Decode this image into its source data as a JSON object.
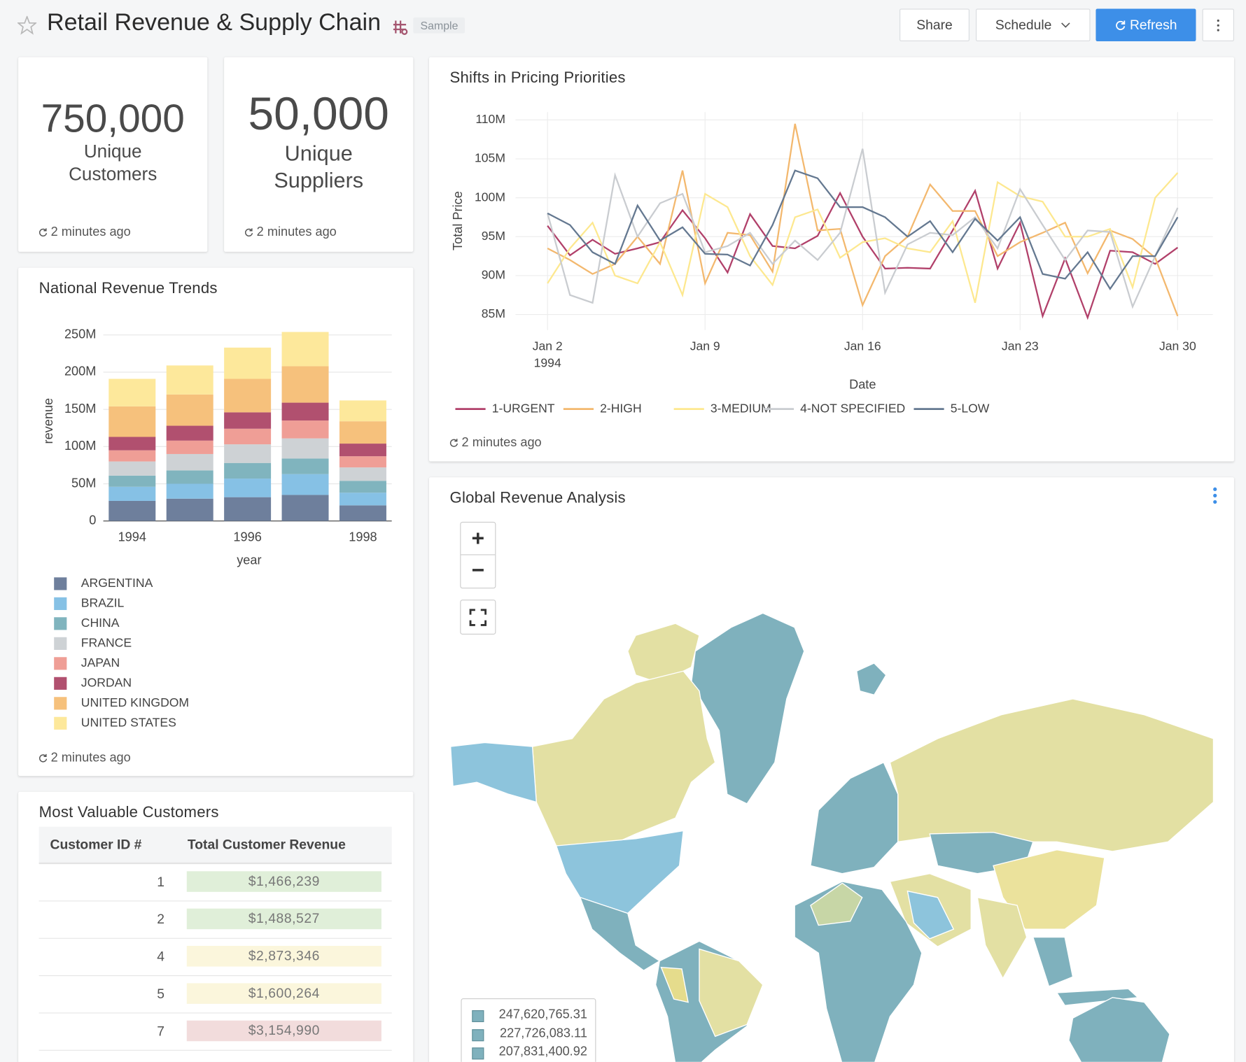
{
  "header": {
    "title": "Retail Revenue & Supply Chain",
    "badge": "Sample",
    "buttons": [
      "Share",
      "Schedule",
      "Refresh"
    ]
  },
  "kpis": [
    {
      "value": "750,000",
      "label_lines": [
        "Unique",
        "Customers"
      ],
      "updated": "2 minutes ago"
    },
    {
      "value": "50,000",
      "label_lines": [
        "Unique",
        "Suppliers"
      ],
      "updated": "2 minutes ago"
    }
  ],
  "chart_data": [
    {
      "type": "bar",
      "stacked": true,
      "title": "National Revenue Trends",
      "x_label": "year",
      "y_label": "revenue",
      "categories": [
        "1994",
        null,
        "1996",
        null,
        "1998"
      ],
      "ylim": [
        0,
        270000000
      ],
      "yticks": [
        0,
        {
          "value": 50000000,
          "label": "50M"
        },
        {
          "value": 100000000,
          "label": "100M"
        },
        {
          "value": 150000000,
          "label": "150M"
        },
        {
          "value": 200000000,
          "label": "200M"
        },
        {
          "value": 250000000,
          "label": "250M"
        }
      ],
      "grid": true,
      "series": [
        {
          "name": "ARGENTINA",
          "color": "#6e7f9c",
          "values": [
            27000000,
            30000000,
            32000000,
            35000000,
            21000000
          ]
        },
        {
          "name": "BRAZIL",
          "color": "#86c1e5",
          "values": [
            19000000,
            20000000,
            25000000,
            28000000,
            17000000
          ]
        },
        {
          "name": "CHINA",
          "color": "#80b4be",
          "values": [
            15000000,
            18000000,
            21000000,
            21000000,
            16000000
          ]
        },
        {
          "name": "FRANCE",
          "color": "#ced2d5",
          "values": [
            19000000,
            22000000,
            25000000,
            27000000,
            18000000
          ]
        },
        {
          "name": "JAPAN",
          "color": "#ef9e96",
          "values": [
            15000000,
            18000000,
            21000000,
            24000000,
            15000000
          ]
        },
        {
          "name": "JORDAN",
          "color": "#b1506f",
          "values": [
            18000000,
            20000000,
            22000000,
            24000000,
            17000000
          ]
        },
        {
          "name": "UNITED KINGDOM",
          "color": "#f6c17c",
          "values": [
            41000000,
            42000000,
            45000000,
            49000000,
            30000000
          ]
        },
        {
          "name": "UNITED STATES",
          "color": "#fde89b",
          "values": [
            37000000,
            39000000,
            42000000,
            46000000,
            28000000
          ]
        }
      ],
      "updated": "2 minutes ago"
    },
    {
      "type": "line",
      "title": "Shifts in Pricing Priorities",
      "x_label": "Date",
      "y_label": "Total Price",
      "x": [
        "1994-01-02",
        "1994-01-03",
        "1994-01-04",
        "1994-01-05",
        "1994-01-06",
        "1994-01-07",
        "1994-01-08",
        "1994-01-09",
        "1994-01-10",
        "1994-01-11",
        "1994-01-12",
        "1994-01-13",
        "1994-01-14",
        "1994-01-15",
        "1994-01-16",
        "1994-01-17",
        "1994-01-18",
        "1994-01-19",
        "1994-01-20",
        "1994-01-21",
        "1994-01-22",
        "1994-01-23",
        "1994-01-24",
        "1994-01-25",
        "1994-01-26",
        "1994-01-27",
        "1994-01-28",
        "1994-01-29",
        "1994-01-30"
      ],
      "xlim": [
        "1994-01-01",
        "1994-01-31"
      ],
      "xticks": [
        {
          "value": "1994-01-02",
          "label": "Jan 2"
        },
        {
          "value": "1994-01-09",
          "label": "Jan 9"
        },
        {
          "value": "1994-01-16",
          "label": "Jan 16"
        },
        {
          "value": "1994-01-23",
          "label": "Jan 23"
        },
        {
          "value": "1994-01-30",
          "label": "Jan 30"
        }
      ],
      "x_year": "1994",
      "ylim": [
        83000000,
        111000000
      ],
      "yticks": [
        {
          "value": 85000000,
          "label": "85M"
        },
        {
          "value": 90000000,
          "label": "90M"
        },
        {
          "value": 95000000,
          "label": "95M"
        },
        {
          "value": 100000000,
          "label": "100M"
        },
        {
          "value": 105000000,
          "label": "105M"
        },
        {
          "value": 110000000,
          "label": "110M"
        }
      ],
      "grid": true,
      "series": [
        {
          "name": "1-URGENT",
          "color": "#b1406a",
          "values": [
            96400000,
            92600000,
            94600000,
            92800000,
            93500000,
            94300000,
            98400000,
            94800000,
            90400000,
            97900000,
            93800000,
            93500000,
            95100000,
            100600000,
            95000000,
            90900000,
            91000000,
            90900000,
            95800000,
            100900000,
            90900000,
            96800000,
            84800000,
            92200000,
            84600000,
            93200000,
            93000000,
            91500000,
            93600000
          ]
        },
        {
          "name": "2-HIGH",
          "color": "#f3b86e",
          "values": [
            93500000,
            92000000,
            90200000,
            91500000,
            95000000,
            91500000,
            103500000,
            89000000,
            95500000,
            95200000,
            90500000,
            109500000,
            95800000,
            96000000,
            86200000,
            92500000,
            95000000,
            101700000,
            98300000,
            98300000,
            92500000,
            94300000,
            95500000,
            96800000,
            90300000,
            95800000,
            94700000,
            92300000,
            84800000
          ]
        },
        {
          "name": "3-MEDIUM",
          "color": "#fde88f",
          "values": [
            89000000,
            93500000,
            96800000,
            90000000,
            89000000,
            94300000,
            87500000,
            100500000,
            98800000,
            92500000,
            88800000,
            97500000,
            98500000,
            92300000,
            94300000,
            94800000,
            93500000,
            93000000,
            97000000,
            86500000,
            102000000,
            100200000,
            99500000,
            95000000,
            95000000,
            96000000,
            88500000,
            100000000,
            103200000
          ]
        },
        {
          "name": "4-NOT SPECIFIED",
          "color": "#c9ccd0",
          "values": [
            98000000,
            87500000,
            86500000,
            102900000,
            95000000,
            99300000,
            100500000,
            93000000,
            93800000,
            95500000,
            91500000,
            94500000,
            92000000,
            95500000,
            106300000,
            87800000,
            94000000,
            95500000,
            95200000,
            97500000,
            93500000,
            101100000,
            96500000,
            92000000,
            95800000,
            95600000,
            86000000,
            92500000,
            98700000
          ]
        },
        {
          "name": "5-LOW",
          "color": "#647890",
          "values": [
            98000000,
            96500000,
            93000000,
            91500000,
            99000000,
            94500000,
            96200000,
            92800000,
            92700000,
            91300000,
            96500000,
            103500000,
            102500000,
            98800000,
            98800000,
            97500000,
            95000000,
            97000000,
            93000000,
            97300000,
            94500000,
            97500000,
            90200000,
            89600000,
            93000000,
            88300000,
            92500000,
            92500000,
            97500000
          ]
        }
      ],
      "updated": "2 minutes ago"
    }
  ],
  "table": {
    "title": "Most Valuable Customers",
    "columns": [
      "Customer ID #",
      "Total Customer Revenue"
    ],
    "rows": [
      {
        "id": "1",
        "revenue": "$1,466,239",
        "color": "#e0efd9"
      },
      {
        "id": "2",
        "revenue": "$1,488,527",
        "color": "#e0efd9"
      },
      {
        "id": "4",
        "revenue": "$2,873,346",
        "color": "#fbf6dc"
      },
      {
        "id": "5",
        "revenue": "$1,600,264",
        "color": "#fbf6dc"
      },
      {
        "id": "7",
        "revenue": "$3,154,990",
        "color": "#f2dcdc"
      }
    ]
  },
  "map": {
    "title": "Global Revenue Analysis",
    "legend": [
      "247,620,765.31",
      "227,726,083.11",
      "207,831,400.92"
    ],
    "legend_color": "#7fb1bd"
  }
}
